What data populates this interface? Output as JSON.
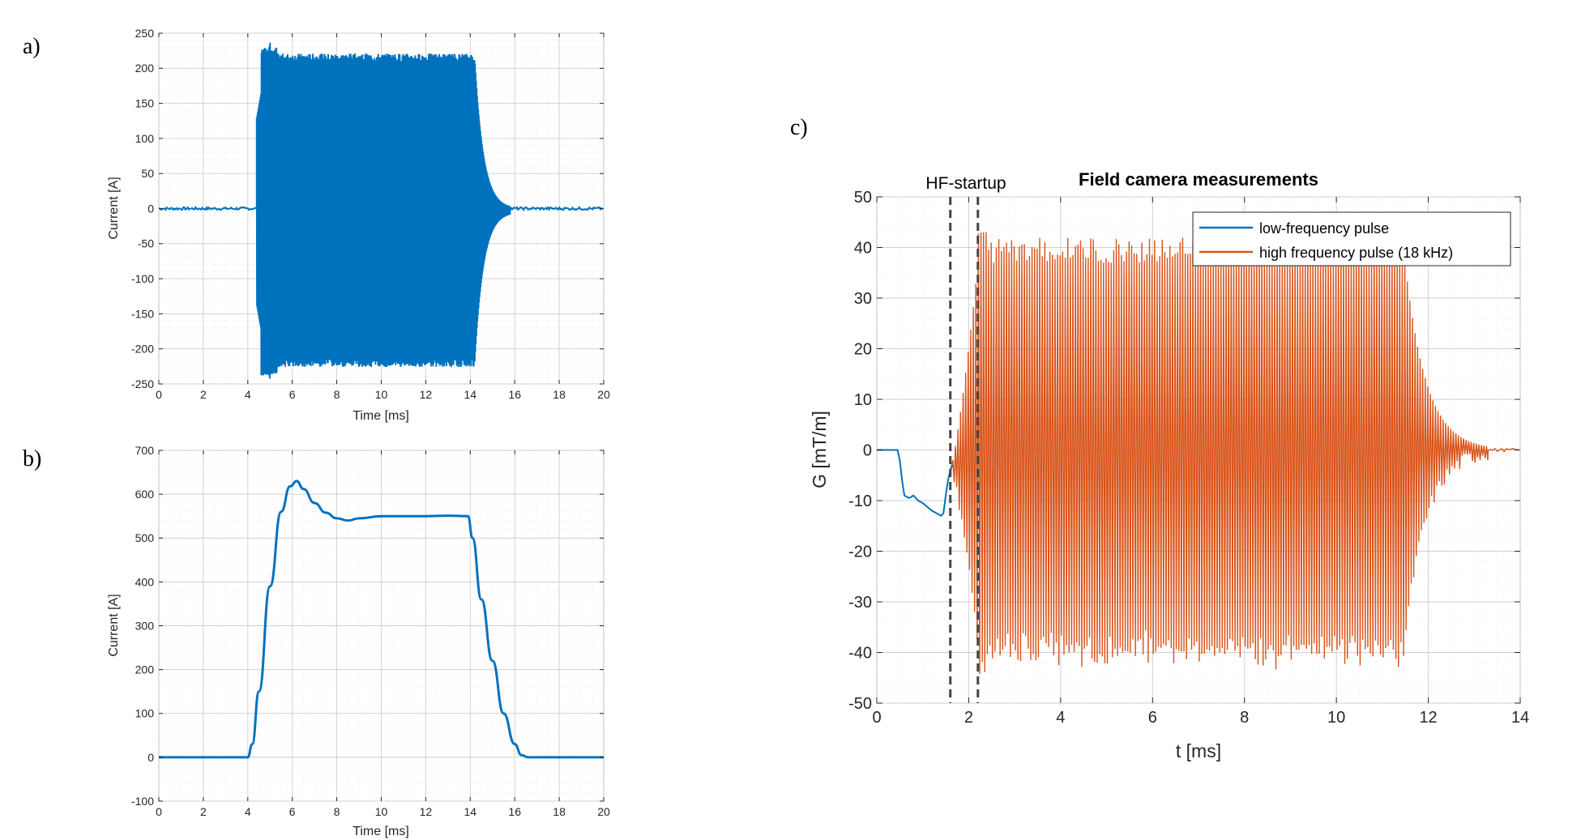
{
  "chart_data": [
    {
      "panel": "a)",
      "type": "line",
      "xlabel": "Time [ms]",
      "ylabel": "Current [A]",
      "xlim": [
        0,
        20
      ],
      "ylim": [
        -250,
        250
      ],
      "xticks": [
        0,
        2,
        4,
        6,
        8,
        10,
        12,
        14,
        16,
        18,
        20
      ],
      "yticks": [
        -250,
        -200,
        -150,
        -100,
        -50,
        0,
        50,
        100,
        150,
        200,
        250
      ],
      "grid": true,
      "minor_grid": true,
      "color": "#0072BD",
      "series": [
        {
          "kind": "oscillation_envelope",
          "baseline": 0,
          "t_on": 4.4,
          "t_plateau": 5.0,
          "t_off": 14.2,
          "t_end": 15.8,
          "peak_startup": 230,
          "trough_startup": -237,
          "amplitude": 215
        }
      ]
    },
    {
      "panel": "b)",
      "type": "line",
      "xlabel": "Time [ms]",
      "ylabel": "Current [A]",
      "xlim": [
        0,
        20
      ],
      "ylim": [
        -100,
        700
      ],
      "xticks": [
        0,
        2,
        4,
        6,
        8,
        10,
        12,
        14,
        16,
        18,
        20
      ],
      "yticks": [
        -100,
        0,
        100,
        200,
        300,
        400,
        500,
        600,
        700
      ],
      "grid": true,
      "minor_grid": true,
      "color": "#0072BD",
      "series": [
        {
          "x": [
            0,
            4.0,
            4.2,
            4.5,
            5.0,
            5.5,
            5.9,
            6.2,
            6.5,
            7.0,
            7.5,
            8.0,
            8.5,
            9.0,
            10.0,
            11.0,
            12.0,
            13.0,
            13.9,
            14.1,
            14.5,
            15.0,
            15.5,
            16.0,
            16.3,
            16.6,
            17.0,
            20
          ],
          "y": [
            0,
            0,
            30,
            150,
            390,
            560,
            618,
            630,
            612,
            580,
            558,
            545,
            540,
            545,
            550,
            550,
            550,
            551,
            550,
            500,
            360,
            220,
            100,
            30,
            5,
            0,
            0,
            0
          ]
        }
      ]
    },
    {
      "panel": "c)",
      "type": "line",
      "title": "Field camera measurements",
      "xlabel": "t [ms]",
      "ylabel": "G [mT/m]",
      "xlim": [
        0,
        14
      ],
      "ylim": [
        -50,
        50
      ],
      "xticks": [
        0,
        2,
        4,
        6,
        8,
        10,
        12,
        14
      ],
      "yticks": [
        -50,
        -40,
        -30,
        -20,
        -10,
        0,
        10,
        20,
        30,
        40,
        50
      ],
      "grid": true,
      "minor_grid": true,
      "legend": "top-right",
      "annotation": {
        "text": "HF-startup",
        "vlines": [
          1.6,
          2.2
        ]
      },
      "series": [
        {
          "name": "low-frequency pulse",
          "color": "#0072BD",
          "x": [
            0,
            0.45,
            0.5,
            0.55,
            0.6,
            0.7,
            0.8,
            0.9,
            1.0,
            1.2,
            1.4,
            1.45,
            1.5,
            1.55,
            1.6,
            1.65
          ],
          "y": [
            0,
            0,
            -2,
            -6,
            -9,
            -9.5,
            -9,
            -10,
            -10.5,
            -12,
            -13,
            -12.5,
            -9,
            -6,
            -4,
            -3
          ]
        },
        {
          "name": "high frequency pulse (18 kHz)",
          "color": "#D95319",
          "kind": "oscillation_envelope",
          "frequency_khz": 18,
          "baseline": 0,
          "t_on": 1.6,
          "t_full": 2.25,
          "t_decay": 11.45,
          "t_end": 13.3,
          "upper_amplitude": 41,
          "lower_amplitude": -41,
          "peak": 43
        }
      ]
    }
  ]
}
